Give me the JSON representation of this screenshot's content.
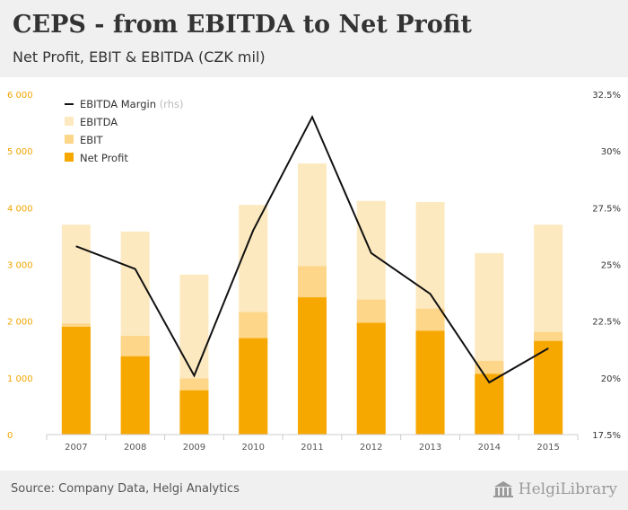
{
  "header": {
    "title": "CEPS - from EBITDA to Net Profit",
    "subtitle": "Net Profit, EBIT & EBITDA (CZK mil)"
  },
  "footer": {
    "source": "Source: Company Data, Helgi Analytics",
    "logo_text": "HelgiLibrary"
  },
  "colors": {
    "ebitda": "#fde9bf",
    "ebit": "#fdd68a",
    "net_profit": "#f7a800",
    "margin_line": "#111111",
    "left_axis_text": "#f0a500",
    "right_axis_text": "#333333"
  },
  "chart_data": {
    "type": "bar",
    "categories": [
      "2007",
      "2008",
      "2009",
      "2010",
      "2011",
      "2012",
      "2013",
      "2014",
      "2015"
    ],
    "series": [
      {
        "name": "EBITDA",
        "values": [
          3700,
          3580,
          2820,
          4050,
          4780,
          4120,
          4100,
          3200,
          3700
        ]
      },
      {
        "name": "EBIT",
        "values": [
          1960,
          1740,
          990,
          2160,
          2970,
          2380,
          2220,
          1300,
          1810
        ]
      },
      {
        "name": "Net Profit",
        "values": [
          1900,
          1380,
          780,
          1700,
          2420,
          1970,
          1830,
          1070,
          1650
        ]
      },
      {
        "name": "EBITDA Margin",
        "axis": "right",
        "values": [
          25.8,
          24.8,
          20.1,
          26.5,
          31.5,
          25.5,
          23.7,
          19.8,
          21.3
        ]
      }
    ],
    "legend": {
      "items": [
        "EBITDA Margin",
        "EBITDA",
        "EBIT",
        "Net Profit"
      ],
      "rhs_note": "(rhs)",
      "position": "top-left"
    },
    "y_left": {
      "ylim": [
        0,
        6000
      ],
      "ticks": [
        0,
        1000,
        2000,
        3000,
        4000,
        5000,
        6000
      ],
      "tick_labels": [
        "0",
        "1 000",
        "2 000",
        "3 000",
        "4 000",
        "5 000",
        "6 000"
      ]
    },
    "y_right": {
      "ylim": [
        17.5,
        32.5
      ],
      "ticks": [
        17.5,
        20,
        22.5,
        25,
        27.5,
        30,
        32.5
      ],
      "tick_labels": [
        "17.5%",
        "20%",
        "22.5%",
        "25%",
        "27.5%",
        "30%",
        "32.5%"
      ]
    },
    "xlabel": "",
    "ylabel": "",
    "grid": false
  }
}
